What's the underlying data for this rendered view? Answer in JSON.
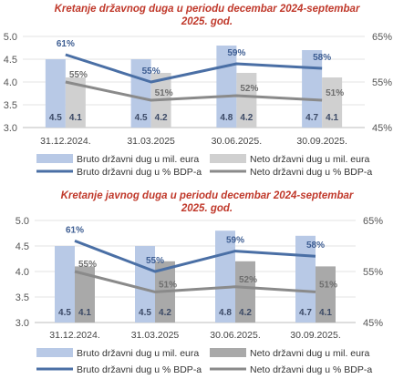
{
  "chart_data": [
    {
      "type": "bar",
      "title_line1": "Kretanje državnog duga u periodu decembar 2024-septembar",
      "title_line2": "2025. god.",
      "categories": [
        "31.12.2024.",
        "31.03.2025",
        "30.06.2025.",
        "30.09.2025."
      ],
      "ylim": [
        3.0,
        5.0
      ],
      "yticks": [
        "3.0",
        "3.5",
        "4.0",
        "4.5",
        "5.0"
      ],
      "y2lim": [
        45,
        65
      ],
      "y2ticks": [
        "45%",
        "55%",
        "65%"
      ],
      "series": [
        {
          "name": "Bruto državni dug u mil. eura",
          "kind": "bar",
          "axis": "left",
          "color": "#b8c9e6",
          "values": [
            4.5,
            4.5,
            4.8,
            4.7
          ],
          "labels": [
            "4.5",
            "4.5",
            "4.8",
            "4.7"
          ]
        },
        {
          "name": "Neto državni dug u mil. eura",
          "kind": "bar",
          "axis": "left",
          "color": "#d0d0d0",
          "values": [
            4.1,
            4.2,
            4.2,
            4.1
          ],
          "labels": [
            "4.1",
            "4.2",
            "4.2",
            "4.1"
          ]
        },
        {
          "name": "Bruto državni dug u % BDP-a",
          "kind": "line",
          "axis": "right",
          "color": "#4a6fa5",
          "values": [
            61,
            55,
            59,
            58
          ],
          "labels": [
            "61%",
            "55%",
            "59%",
            "58%"
          ]
        },
        {
          "name": "Neto državni dug u % BDP-a",
          "kind": "line",
          "axis": "right",
          "color": "#8a8a8a",
          "values": [
            55,
            51,
            52,
            51
          ],
          "labels": [
            "55%",
            "51%",
            "52%",
            "51%"
          ]
        }
      ]
    },
    {
      "type": "bar",
      "title_line1": "Kretanje javnog duga u periodu decembar 2024-septembar",
      "title_line2": "2025. god.",
      "categories": [
        "31.12.2024.",
        "31.03.2025",
        "30.06.2025.",
        "30.09.2025."
      ],
      "ylim": [
        3.0,
        5.0
      ],
      "yticks": [
        "3.0",
        "3.5",
        "4.0",
        "4.5",
        "5.0"
      ],
      "y2lim": [
        45,
        65
      ],
      "y2ticks": [
        "45%",
        "55%",
        "65%"
      ],
      "series": [
        {
          "name": "Bruto državni dug u mil. eura",
          "kind": "bar",
          "axis": "left",
          "color": "#b8c9e6",
          "values": [
            4.5,
            4.5,
            4.8,
            4.7
          ],
          "labels": [
            "4.5",
            "4.5",
            "4.8",
            "4.7"
          ]
        },
        {
          "name": "Neto državni dug u mil. eura",
          "kind": "bar",
          "axis": "left",
          "color": "#a9a9a9",
          "values": [
            4.1,
            4.2,
            4.2,
            4.1
          ],
          "labels": [
            "4.1",
            "4.2",
            "4.2",
            "4.1"
          ]
        },
        {
          "name": "Bruto državni dug u % BDP-a",
          "kind": "line",
          "axis": "right",
          "color": "#4a6fa5",
          "values": [
            61,
            55,
            59,
            58
          ],
          "labels": [
            "61%",
            "55%",
            "59%",
            "58%"
          ]
        },
        {
          "name": "Neto državni dug u % BDP-a",
          "kind": "line",
          "axis": "right",
          "color": "#8a8a8a",
          "values": [
            55,
            51,
            52,
            51
          ],
          "labels": [
            "55%",
            "51%",
            "52%",
            "51%"
          ]
        }
      ]
    }
  ]
}
